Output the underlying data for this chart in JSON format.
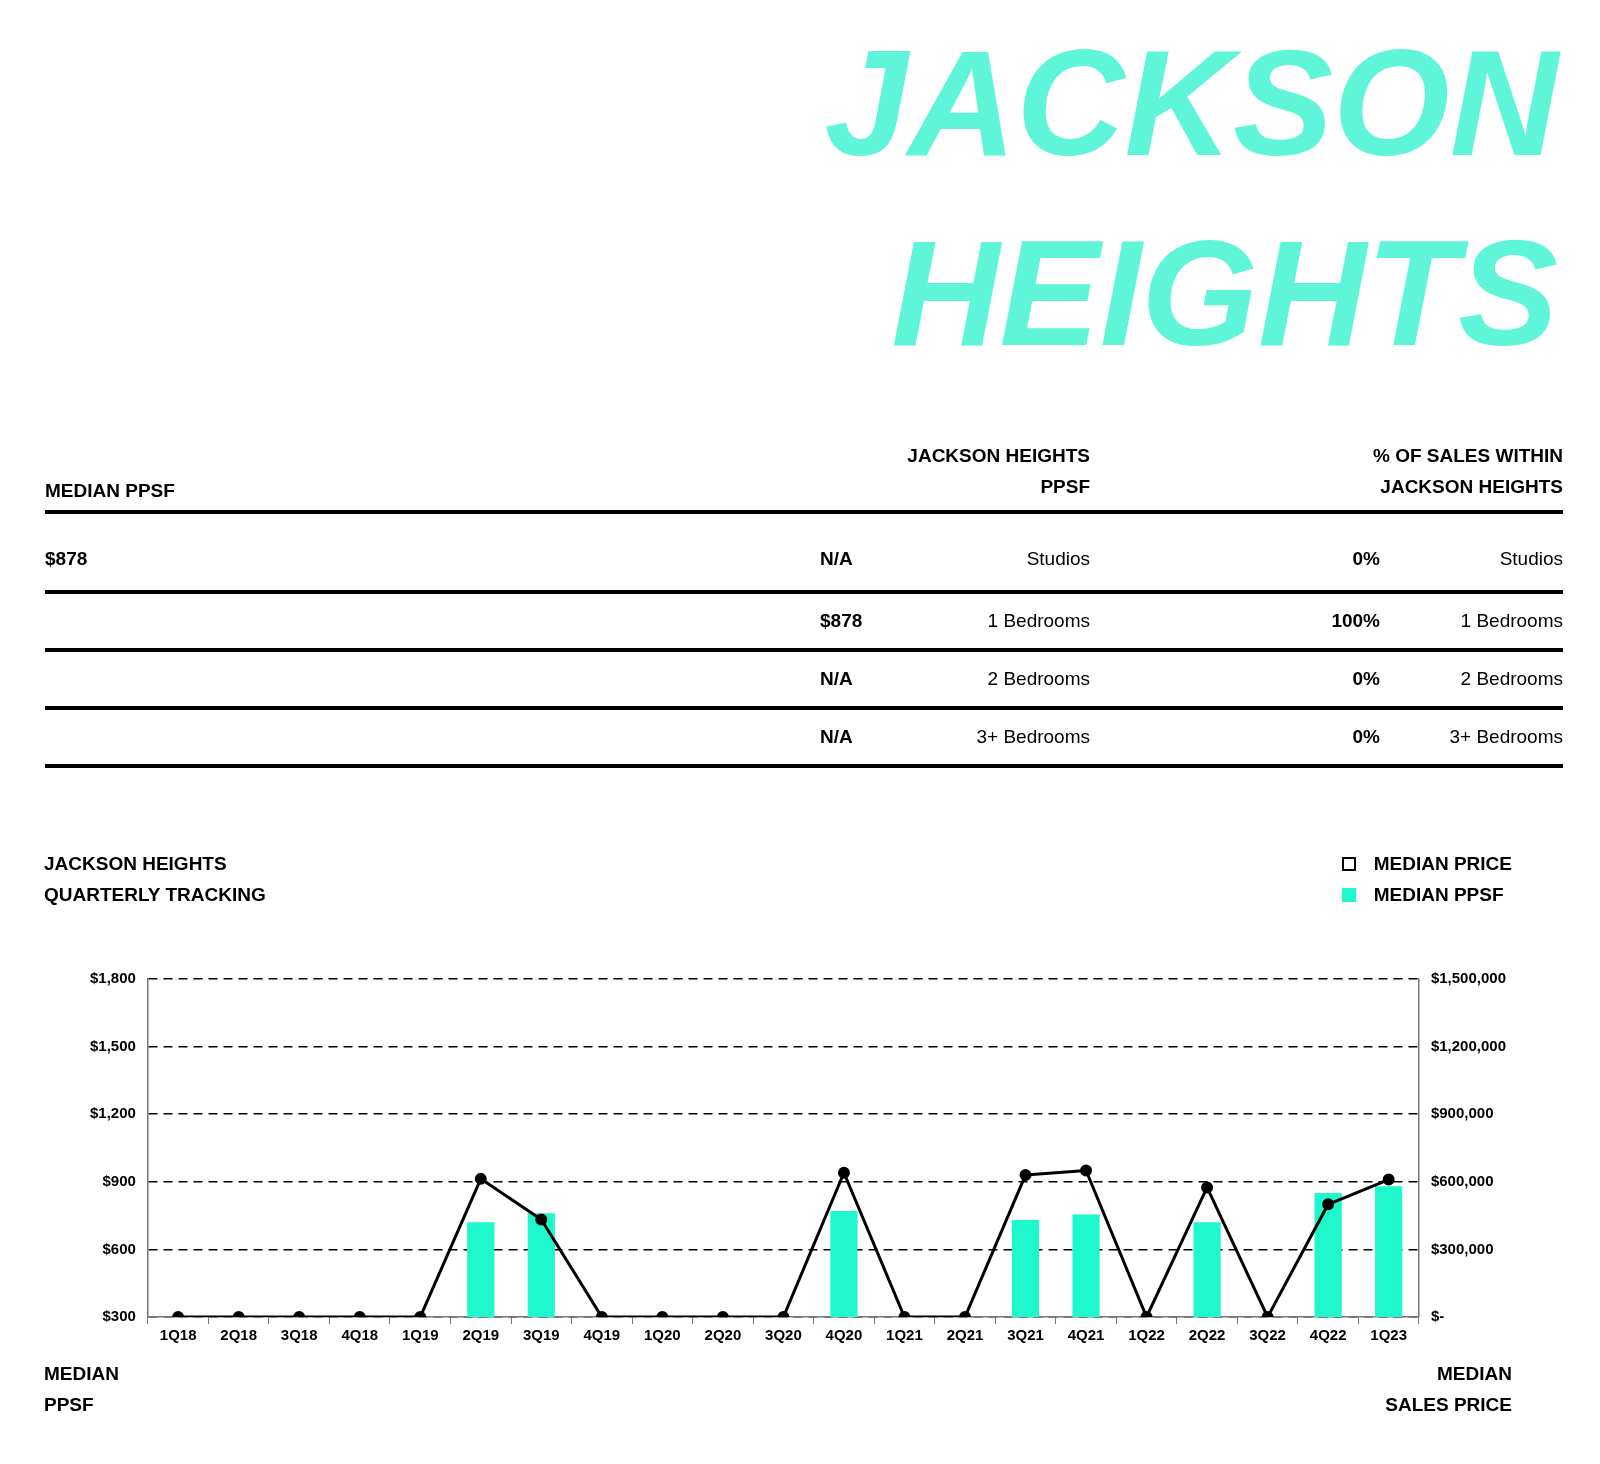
{
  "chart_data": [
    {
      "type": "other",
      "title": "JACKSON HEIGHTS",
      "annotations": [
        "MEDIAN PPSF",
        "JACKSON HEIGHTS PPSF",
        "% OF SALES WITHIN JACKSON HEIGHTS",
        "$878",
        "N/A",
        "Studios",
        "0%",
        "Studios",
        "$878",
        "1 Bedrooms",
        "100%",
        "1 Bedrooms",
        "N/A",
        "2 Bedrooms",
        "0%",
        "2 Bedrooms",
        "N/A",
        "3+ Bedrooms",
        "0%",
        "3+ Bedrooms"
      ]
    },
    {
      "type": "bar",
      "title": "JACKSON HEIGHTS QUARTERLY TRACKING",
      "ylabel": "MEDIAN PPSF",
      "y2label": "MEDIAN SALES PRICE",
      "categories": [
        "1Q18",
        "2Q18",
        "3Q18",
        "4Q18",
        "1Q19",
        "2Q19",
        "3Q19",
        "4Q19",
        "1Q20",
        "2Q20",
        "3Q20",
        "4Q20",
        "1Q21",
        "2Q21",
        "3Q21",
        "4Q21",
        "1Q22",
        "2Q22",
        "3Q22",
        "4Q22",
        "1Q23"
      ],
      "series": [
        {
          "name": "MEDIAN PRICE",
          "type": "line",
          "axis": "y2",
          "color": "#000000",
          "values": [
            0,
            0,
            0,
            0,
            0,
            613000,
            433000,
            0,
            0,
            0,
            0,
            640000,
            0,
            0,
            630000,
            650000,
            0,
            575000,
            0,
            500000,
            610000
          ]
        },
        {
          "name": "MEDIAN PPSF",
          "type": "bar",
          "color": "#1ef8cc",
          "values": [
            null,
            null,
            null,
            null,
            null,
            720,
            760,
            null,
            null,
            null,
            null,
            770,
            null,
            null,
            730,
            755,
            null,
            720,
            null,
            850,
            880
          ]
        }
      ],
      "ylim": [
        300,
        1800
      ],
      "yticks": [
        {
          "value": 300,
          "label": "$300"
        },
        {
          "value": 600,
          "label": "$600"
        },
        {
          "value": 900,
          "label": "$900"
        },
        {
          "value": 1200,
          "label": "$1,200"
        },
        {
          "value": 1500,
          "label": "$1,500"
        },
        {
          "value": 1800,
          "label": "$1,800"
        }
      ],
      "y2lim": [
        0,
        1500000
      ],
      "y2ticks": [
        {
          "value": 0,
          "label": "$-"
        },
        {
          "value": 300000,
          "label": "$300,000"
        },
        {
          "value": 600000,
          "label": "$600,000"
        },
        {
          "value": 900000,
          "label": "$900,000"
        },
        {
          "value": 1200000,
          "label": "$1,200,000"
        },
        {
          "value": 1500000,
          "label": "$1,500,000"
        }
      ],
      "grid": "y",
      "legend": "top right",
      "marker": "circle",
      "line_style": "solid"
    }
  ]
}
